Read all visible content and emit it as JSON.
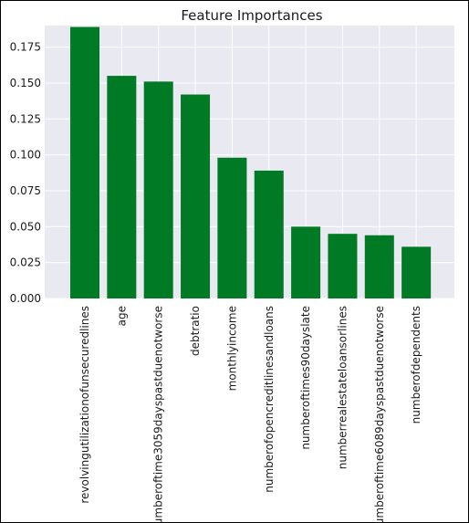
{
  "chart_data": {
    "type": "bar",
    "title": "Feature Importances",
    "xlabel": "",
    "ylabel": "",
    "categories": [
      "revolvingutilizationofunsecuredlines",
      "age",
      "numberoftime3059dayspastduenotworse",
      "debtratio",
      "monthlyincome",
      "numberofopencreditlinesandloans",
      "numberoftimes90dayslate",
      "numberrealestateloansorlines",
      "numberoftime6089dayspastduenotworse",
      "numberofdependents"
    ],
    "values": [
      0.189,
      0.155,
      0.151,
      0.142,
      0.098,
      0.089,
      0.05,
      0.045,
      0.044,
      0.036
    ],
    "ylim": [
      0,
      0.19
    ],
    "yticks": [
      "0.000",
      "0.025",
      "0.050",
      "0.075",
      "0.100",
      "0.125",
      "0.150",
      "0.175"
    ],
    "bar_color": "#007a24",
    "plot_background": "#e9e9f1",
    "grid": true,
    "grid_color": "#ffffff"
  }
}
